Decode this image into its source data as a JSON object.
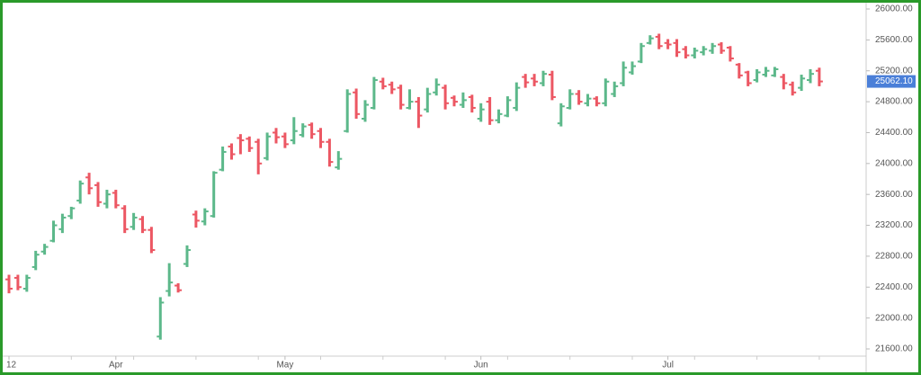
{
  "chart_data": {
    "type": "ohlc",
    "categories": [
      "12",
      null,
      null,
      null,
      null,
      null,
      null,
      null,
      null,
      null,
      null,
      null,
      "Apr",
      null,
      null,
      null,
      null,
      null,
      null,
      null,
      null,
      null,
      null,
      null,
      null,
      null,
      null,
      null,
      null,
      null,
      null,
      "May",
      null,
      null,
      null,
      null,
      null,
      null,
      null,
      null,
      null,
      null,
      null,
      null,
      null,
      null,
      null,
      null,
      null,
      null,
      null,
      null,
      null,
      "Jun",
      null,
      null,
      null,
      null,
      null,
      null,
      null,
      null,
      null,
      null,
      null,
      null,
      null,
      null,
      null,
      null,
      null,
      null,
      null,
      null,
      "Jul",
      null,
      null,
      null,
      null,
      null,
      null,
      null,
      null,
      null,
      null,
      null,
      null,
      null,
      null,
      null,
      null,
      null
    ],
    "open": [
      22500,
      22520,
      22380,
      22660,
      22860,
      23000,
      23150,
      23320,
      23520,
      23820,
      23720,
      23480,
      23620,
      23420,
      23180,
      23280,
      23140,
      21760,
      22350,
      22420,
      22700,
      23340,
      23250,
      23320,
      23920,
      24220,
      24330,
      24320,
      24280,
      24070,
      24400,
      24350,
      24300,
      24370,
      24500,
      24420,
      24280,
      23950,
      24420,
      24920,
      24580,
      24720,
      25060,
      25020,
      24980,
      24720,
      24800,
      24700,
      24920,
      24980,
      24850,
      24760,
      24860,
      24580,
      24800,
      24560,
      24620,
      24720,
      25120,
      25100,
      25040,
      25150,
      24520,
      24720,
      24900,
      24780,
      24840,
      24780,
      24900,
      25040,
      25180,
      25320,
      25560,
      25640,
      25560,
      25560,
      25480,
      25400,
      25440,
      25460,
      25540,
      25500,
      25280,
      25180,
      25080,
      25150,
      25140,
      25120,
      25020,
      24980,
      25080,
      25200
    ],
    "high": [
      22560,
      22560,
      22560,
      22870,
      22960,
      23260,
      23350,
      23440,
      23780,
      23880,
      23760,
      23660,
      23660,
      23460,
      23360,
      23320,
      23180,
      22270,
      22710,
      22450,
      22940,
      23390,
      23420,
      23900,
      24220,
      24260,
      24380,
      24350,
      24320,
      24400,
      24460,
      24400,
      24600,
      24520,
      24530,
      24460,
      24320,
      24160,
      24960,
      24970,
      24820,
      25120,
      25110,
      25060,
      25020,
      24960,
      24860,
      24980,
      25100,
      25020,
      24880,
      24920,
      24890,
      24780,
      24860,
      24700,
      24870,
      25050,
      25160,
      25160,
      25200,
      25200,
      24780,
      24960,
      24950,
      24900,
      24870,
      25100,
      25060,
      25320,
      25320,
      25560,
      25660,
      25680,
      25610,
      25610,
      25520,
      25500,
      25520,
      25560,
      25570,
      25520,
      25300,
      25200,
      25220,
      25250,
      25250,
      25160,
      25060,
      25150,
      25220,
      25240
    ],
    "low": [
      22320,
      22360,
      22340,
      22620,
      22820,
      22980,
      23100,
      23280,
      23480,
      23600,
      23440,
      23420,
      23420,
      23100,
      23140,
      23100,
      22840,
      21720,
      22280,
      22330,
      22660,
      23170,
      23200,
      23300,
      23900,
      24050,
      24120,
      24150,
      23860,
      24040,
      24260,
      24200,
      24250,
      24340,
      24320,
      24200,
      23960,
      23920,
      24400,
      24580,
      24540,
      24700,
      24960,
      24900,
      24700,
      24700,
      24460,
      24660,
      24880,
      24700,
      24740,
      24720,
      24660,
      24540,
      24500,
      24520,
      24600,
      24680,
      24980,
      25000,
      25000,
      24820,
      24480,
      24700,
      24760,
      24740,
      24740,
      24740,
      24860,
      25000,
      25150,
      25300,
      25540,
      25480,
      25480,
      25380,
      25360,
      25360,
      25400,
      25420,
      25420,
      25320,
      25100,
      25000,
      25050,
      25120,
      25120,
      24960,
      24880,
      24940,
      25040,
      25000
    ],
    "close": [
      22380,
      22400,
      22520,
      22820,
      22920,
      23200,
      23300,
      23420,
      23740,
      23680,
      23500,
      23600,
      23460,
      23150,
      23300,
      23140,
      22880,
      22200,
      22460,
      22360,
      22880,
      23260,
      23380,
      23880,
      24150,
      24120,
      24300,
      24200,
      24000,
      24350,
      24340,
      24250,
      24420,
      24480,
      24380,
      24280,
      24020,
      24060,
      24900,
      24640,
      24760,
      25080,
      25000,
      24960,
      24760,
      24800,
      24620,
      24900,
      25020,
      24780,
      24800,
      24820,
      24720,
      24700,
      24560,
      24640,
      24820,
      24980,
      25050,
      25060,
      25160,
      24860,
      24740,
      24900,
      24800,
      24840,
      24780,
      25060,
      25000,
      25240,
      25260,
      25520,
      25620,
      25520,
      25540,
      25440,
      25400,
      25460,
      25480,
      25520,
      25460,
      25360,
      25140,
      25040,
      25180,
      25200,
      25220,
      25040,
      24920,
      25100,
      25160,
      25062.1
    ],
    "up_color": "#5cb88a",
    "down_color": "#ec5763",
    "ylim": [
      21600,
      26000
    ],
    "yticks": [
      {
        "value": 21600,
        "label": "21600.00"
      },
      {
        "value": 22000,
        "label": "22000.00"
      },
      {
        "value": 22400,
        "label": "22400.00"
      },
      {
        "value": 22800,
        "label": "22800.00"
      },
      {
        "value": 23200,
        "label": "23200.00"
      },
      {
        "value": 23600,
        "label": "23600.00"
      },
      {
        "value": 24000,
        "label": "24000.00"
      },
      {
        "value": 24400,
        "label": "24400.00"
      },
      {
        "value": 24800,
        "label": "24800.00"
      },
      {
        "value": 25200,
        "label": "25200.00"
      },
      {
        "value": 25600,
        "label": "25600.00"
      },
      {
        "value": 26000,
        "label": "26000.00"
      }
    ],
    "last_price": {
      "value": 25062.1,
      "label": "25062.10",
      "color": "#4a7fd8"
    }
  }
}
